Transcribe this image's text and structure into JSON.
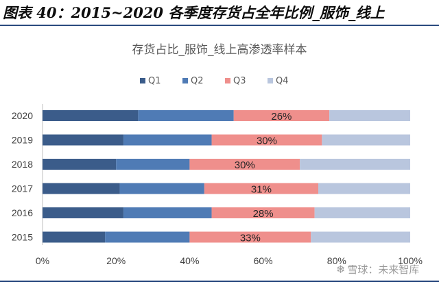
{
  "figure_title": "图表 40：2015~2020 各季度存货占全年比例_服饰_线上",
  "watermark": {
    "icon": "snowball-icon",
    "glyph": "❄",
    "text": "雪球：未来智库"
  },
  "chart_data": {
    "type": "bar",
    "orientation": "horizontal",
    "stacked": true,
    "title": "存货占比_服饰_线上高渗透率样本",
    "categories": [
      "2020",
      "2019",
      "2018",
      "2017",
      "2016",
      "2015"
    ],
    "series": [
      {
        "name": "Q1",
        "color": "#3b5c8a",
        "values": [
          26,
          22,
          20,
          21,
          22,
          17
        ]
      },
      {
        "name": "Q2",
        "color": "#4f7bb5",
        "values": [
          26,
          24,
          20,
          23,
          24,
          23
        ]
      },
      {
        "name": "Q3",
        "color": "#ef8f8c",
        "values": [
          26,
          30,
          30,
          31,
          28,
          33
        ],
        "labels": [
          "26%",
          "30%",
          "30%",
          "31%",
          "28%",
          "33%"
        ]
      },
      {
        "name": "Q4",
        "color": "#b9c6de",
        "values": [
          22,
          24,
          30,
          25,
          26,
          27
        ]
      }
    ],
    "xlim": [
      0,
      100
    ],
    "xticks": [
      "0%",
      "20%",
      "40%",
      "60%",
      "80%",
      "100%"
    ],
    "xlabel": "",
    "ylabel": "",
    "legend_position": "top",
    "grid": false
  }
}
